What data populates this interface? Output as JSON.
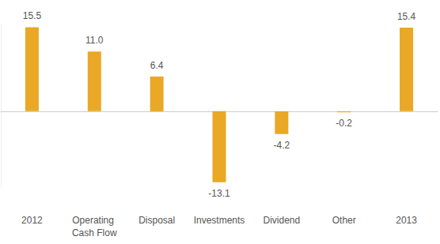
{
  "chart_data": {
    "type": "bar",
    "categories": [
      "2012",
      "Operating Cash Flow",
      "Disposal",
      "Investments",
      "Dividend",
      "Other",
      "2013"
    ],
    "values": [
      15.5,
      11.0,
      6.4,
      -13.1,
      -4.2,
      -0.2,
      15.4
    ],
    "value_labels": [
      "15.5",
      "11.0",
      "6.4",
      "-13.1",
      "-4.2",
      "-0.2",
      "15.4"
    ],
    "color": "#e9a825",
    "ylim": [
      -14,
      16
    ],
    "data_labels": true,
    "tick_labels": "x",
    "grid": false
  }
}
